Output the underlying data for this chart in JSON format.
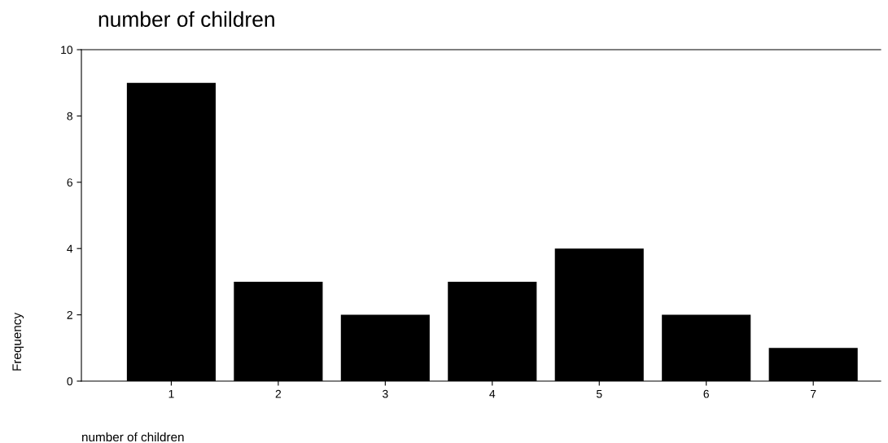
{
  "chart_data": {
    "type": "bar",
    "title": "number of children",
    "xlabel": "number of children",
    "ylabel": "Frequency",
    "categories": [
      "1",
      "2",
      "3",
      "4",
      "5",
      "6",
      "7"
    ],
    "values": [
      9,
      3,
      2,
      3,
      4,
      2,
      1
    ],
    "color": "#000000",
    "ylim": [
      0,
      10
    ],
    "yticks": [
      0,
      2,
      4,
      6,
      8,
      10
    ],
    "grid": false,
    "legend": false
  }
}
